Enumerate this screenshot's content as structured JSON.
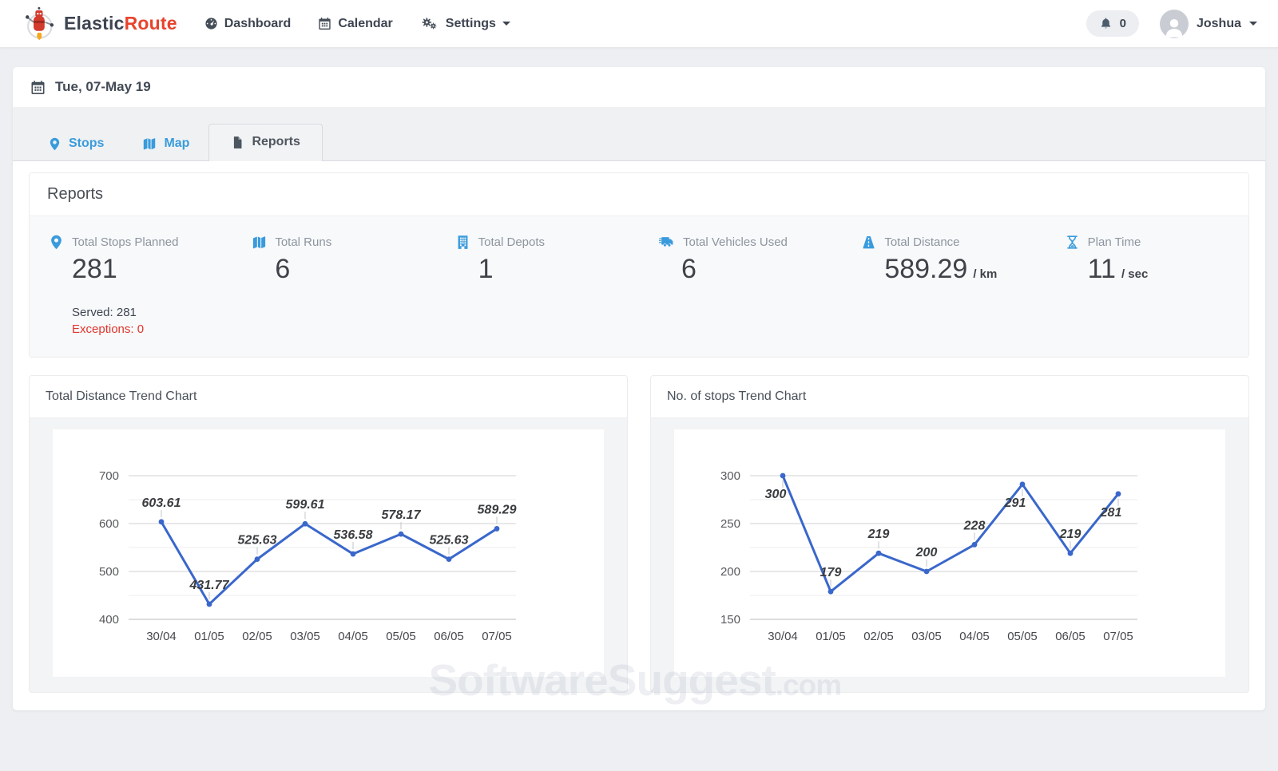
{
  "colors": {
    "accent_blue": "#3a9bdc",
    "brand_dark": "#3e4551",
    "brand_red": "#e8432d",
    "line_blue": "#3a67cb",
    "exception_red": "#e0352c"
  },
  "navbar": {
    "brand": {
      "primary": "Elastic",
      "secondary": "Route"
    },
    "dashboard_label": "Dashboard",
    "calendar_label": "Calendar",
    "settings_label": "Settings",
    "notification_count": "0",
    "user_name": "Joshua"
  },
  "datebar": {
    "date_label": "Tue, 07-May 19"
  },
  "tabs": {
    "stops": "Stops",
    "map": "Map",
    "reports": "Reports"
  },
  "reports": {
    "title": "Reports",
    "stats": [
      {
        "icon": "map-marker-icon",
        "label": "Total Stops Planned",
        "value": "281",
        "unit": "",
        "served_text": "Served: 281",
        "exceptions_text": "Exceptions: 0"
      },
      {
        "icon": "map-icon",
        "label": "Total Runs",
        "value": "6",
        "unit": ""
      },
      {
        "icon": "building-icon",
        "label": "Total Depots",
        "value": "1",
        "unit": ""
      },
      {
        "icon": "truck-icon",
        "label": "Total Vehicles Used",
        "value": "6",
        "unit": ""
      },
      {
        "icon": "road-icon",
        "label": "Total Distance",
        "value": "589.29",
        "unit": "/ km"
      },
      {
        "icon": "hourglass-icon",
        "label": "Plan Time",
        "value": "11",
        "unit": "/ sec"
      }
    ]
  },
  "chart_data": [
    {
      "type": "line",
      "title": "Total Distance Trend Chart",
      "categories": [
        "30/04",
        "01/05",
        "02/05",
        "03/05",
        "04/05",
        "05/05",
        "06/05",
        "07/05"
      ],
      "values": [
        603.61,
        431.77,
        525.63,
        599.61,
        536.58,
        578.17,
        525.63,
        589.29
      ],
      "ylim": [
        400,
        700
      ],
      "yticks": [
        400,
        500,
        600,
        700
      ],
      "xlabel": "",
      "ylabel": "",
      "legend": "none",
      "grid": true,
      "line_color": "#3a67cb",
      "point_labels": true
    },
    {
      "type": "line",
      "title": "No. of stops Trend Chart",
      "categories": [
        "30/04",
        "01/05",
        "02/05",
        "03/05",
        "04/05",
        "05/05",
        "06/05",
        "07/05"
      ],
      "values": [
        300,
        179,
        219,
        200,
        228,
        291,
        219,
        281
      ],
      "ylim": [
        150,
        300
      ],
      "yticks": [
        150,
        200,
        250,
        300
      ],
      "xlabel": "",
      "ylabel": "",
      "legend": "none",
      "grid": true,
      "line_color": "#3a67cb",
      "point_labels": true
    }
  ],
  "watermark": {
    "text": "SoftwareSuggest",
    "suffix": ".com"
  }
}
